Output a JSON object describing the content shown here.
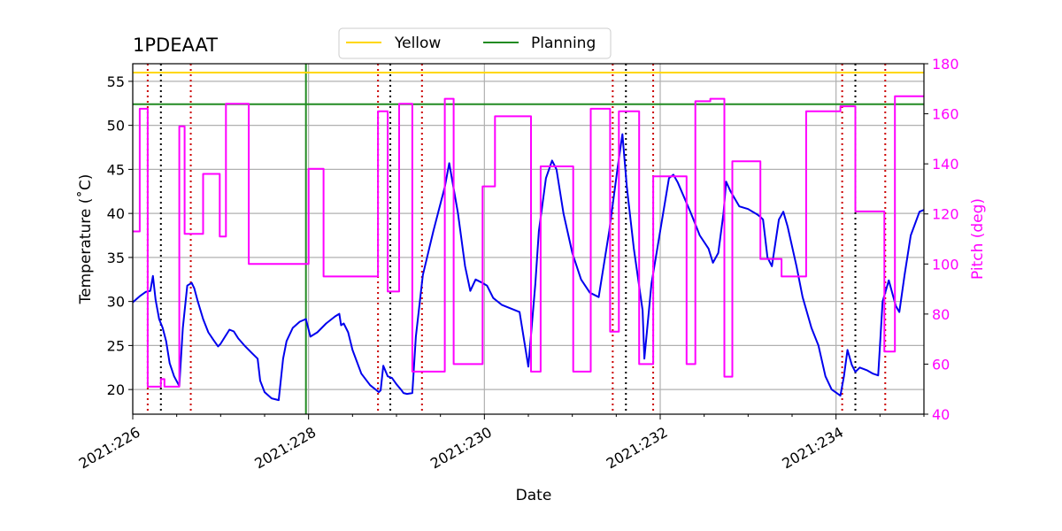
{
  "chart_data": {
    "type": "line",
    "title": "1PDEAAT",
    "xlabel": "Date",
    "ylabel": "Temperature ($^\\circ$C)",
    "ylabel_display": "Temperature (˚C)",
    "y2label": "Pitch (deg)",
    "xlim": [
      226.0,
      235.0
    ],
    "ylim": [
      17.2,
      57.0
    ],
    "y2lim": [
      40,
      180
    ],
    "x_ticks": [
      226,
      228,
      230,
      232,
      234
    ],
    "x_tick_labels": [
      "2021:226",
      "2021:228",
      "2021:230",
      "2021:232",
      "2021:234"
    ],
    "y_ticks": [
      20,
      25,
      30,
      35,
      40,
      45,
      50,
      55
    ],
    "y2_ticks": [
      40,
      60,
      80,
      100,
      120,
      140,
      160,
      180
    ],
    "grid": true,
    "colors": {
      "temperature": "#0000ee",
      "pitch": "#ff00ff",
      "yellow": "#ffd700",
      "planning": "#228b22",
      "comm": "#cc0000",
      "safe": "#000000",
      "grid": "#b0b0b0"
    },
    "legend": {
      "position": "top-center",
      "entries": [
        {
          "name": "Yellow",
          "color": "#ffd700"
        },
        {
          "name": "Planning",
          "color": "#228b22"
        }
      ]
    },
    "limits": {
      "yellow": 56.0,
      "planning": 52.4
    },
    "planning_vline_x": 227.97,
    "red_dotted_x": [
      226.17,
      226.66,
      228.79,
      229.29,
      231.46,
      231.92,
      234.07,
      234.56
    ],
    "black_dotted_x": [
      226.32,
      228.93,
      231.61,
      234.22
    ],
    "series": [
      {
        "name": "Temperature",
        "axis": "left",
        "x": [
          226.0,
          226.08,
          226.15,
          226.2,
          226.23,
          226.26,
          226.3,
          226.34,
          226.38,
          226.42,
          226.47,
          226.53,
          226.57,
          226.62,
          226.67,
          226.7,
          226.74,
          226.8,
          226.86,
          226.92,
          226.97,
          227.0,
          227.05,
          227.1,
          227.15,
          227.2,
          227.27,
          227.35,
          227.42,
          227.45,
          227.5,
          227.58,
          227.66,
          227.71,
          227.75,
          227.82,
          227.9,
          227.97,
          228.02,
          228.1,
          228.2,
          228.3,
          228.35,
          228.37,
          228.4,
          228.45,
          228.5,
          228.6,
          228.7,
          228.8,
          228.82,
          228.85,
          228.9,
          228.95,
          229.0,
          229.05,
          229.08,
          229.12,
          229.18,
          229.22,
          229.3,
          229.42,
          229.55,
          229.6,
          229.7,
          229.78,
          229.84,
          229.9,
          229.96,
          230.03,
          230.1,
          230.2,
          230.3,
          230.4,
          230.5,
          230.58,
          230.62,
          230.7,
          230.77,
          230.82,
          230.9,
          231.0,
          231.1,
          231.2,
          231.3,
          231.42,
          231.52,
          231.57,
          231.62,
          231.7,
          231.8,
          231.82,
          231.9,
          232.0,
          232.1,
          232.15,
          232.2,
          232.35,
          232.45,
          232.55,
          232.6,
          232.66,
          232.72,
          232.75,
          232.8,
          232.9,
          233.0,
          233.1,
          233.14,
          233.17,
          233.22,
          233.27,
          233.35,
          233.4,
          233.45,
          233.55,
          233.62,
          233.72,
          233.8,
          233.88,
          233.95,
          234.05,
          234.09,
          234.13,
          234.18,
          234.22,
          234.27,
          234.35,
          234.42,
          234.48,
          234.53,
          234.6,
          234.68,
          234.72,
          234.78,
          234.85,
          234.95,
          235.0
        ],
        "y": [
          29.9,
          30.6,
          31.1,
          31.2,
          32.9,
          30.2,
          28.0,
          27.0,
          25.5,
          23.0,
          21.5,
          20.4,
          27.0,
          31.8,
          32.1,
          31.5,
          30.0,
          28.0,
          26.5,
          25.6,
          24.9,
          25.2,
          26.0,
          26.8,
          26.6,
          25.8,
          25.0,
          24.2,
          23.5,
          21.0,
          19.7,
          19.0,
          18.8,
          23.5,
          25.5,
          27.0,
          27.7,
          28.0,
          26.0,
          26.5,
          27.5,
          28.3,
          28.6,
          27.3,
          27.5,
          26.5,
          24.5,
          21.8,
          20.5,
          19.7,
          19.9,
          22.7,
          21.5,
          21.3,
          20.6,
          20.0,
          19.6,
          19.5,
          19.6,
          26.0,
          33.0,
          38.0,
          43.0,
          45.7,
          40.0,
          34.0,
          31.2,
          32.5,
          32.2,
          31.8,
          30.4,
          29.6,
          29.2,
          28.8,
          22.6,
          32.0,
          38.0,
          44.0,
          46.0,
          45.0,
          40.0,
          35.5,
          32.5,
          31.0,
          30.5,
          38.0,
          45.5,
          49.0,
          43.0,
          36.0,
          29.0,
          23.5,
          32.0,
          38.0,
          44.0,
          44.4,
          43.5,
          40.0,
          37.5,
          36.0,
          34.4,
          35.5,
          40.0,
          43.6,
          42.5,
          40.8,
          40.5,
          39.9,
          39.6,
          39.3,
          35.0,
          34.0,
          39.3,
          40.2,
          38.5,
          34.0,
          30.5,
          27.0,
          25.0,
          21.5,
          20.0,
          19.3,
          21.5,
          24.5,
          22.8,
          22.0,
          22.5,
          22.2,
          21.8,
          21.6,
          30.0,
          32.4,
          29.5,
          28.8,
          33.0,
          37.5,
          40.2,
          40.4
        ]
      },
      {
        "name": "Pitch",
        "axis": "right",
        "x": [
          226.0,
          226.08,
          226.08,
          226.17,
          226.17,
          226.32,
          226.32,
          226.36,
          226.36,
          226.42,
          226.44,
          226.48,
          226.51,
          226.53,
          226.53,
          226.59,
          226.59,
          226.66,
          226.66,
          226.8,
          226.8,
          226.99,
          226.99,
          227.06,
          227.06,
          227.32,
          227.32,
          227.45,
          227.45,
          227.66,
          227.66,
          228.0,
          228.0,
          228.17,
          228.17,
          228.38,
          228.38,
          228.79,
          228.79,
          228.9,
          228.9,
          229.03,
          229.03,
          229.18,
          229.18,
          229.29,
          229.29,
          229.55,
          229.55,
          229.65,
          229.65,
          229.78,
          229.78,
          229.98,
          229.98,
          230.05,
          230.05,
          230.12,
          230.12,
          230.53,
          230.53,
          230.59,
          230.59,
          230.64,
          230.64,
          230.75,
          230.75,
          231.01,
          231.01,
          231.21,
          231.21,
          231.43,
          231.43,
          231.48,
          231.48,
          231.53,
          231.53,
          231.76,
          231.76,
          231.82,
          231.82,
          231.92,
          231.92,
          232.1,
          232.1,
          232.3,
          232.3,
          232.4,
          232.4,
          232.57,
          232.57,
          232.73,
          232.73,
          232.82,
          232.82,
          233.14,
          233.14,
          233.24,
          233.24,
          233.38,
          233.38,
          233.66,
          233.66,
          234.05,
          234.05,
          234.22,
          234.22,
          234.26,
          234.26,
          234.55,
          234.55,
          234.67,
          234.67,
          234.95,
          234.95,
          235.0
        ],
        "y": [
          113,
          113,
          162,
          162,
          51,
          51,
          54,
          54,
          51,
          51,
          51,
          51,
          51,
          51,
          155,
          155,
          112,
          112,
          112,
          112,
          136,
          136,
          111,
          111,
          164,
          164,
          100,
          100,
          100,
          100,
          100,
          100,
          138,
          138,
          95,
          95,
          95,
          95,
          161,
          161,
          89,
          89,
          164,
          164,
          57,
          57,
          57,
          57,
          166,
          166,
          60,
          60,
          60,
          60,
          131,
          131,
          131,
          131,
          159,
          159,
          57,
          57,
          57,
          57,
          139,
          139,
          139,
          139,
          57,
          57,
          162,
          162,
          73,
          73,
          73,
          73,
          161,
          161,
          60,
          60,
          60,
          60,
          135,
          135,
          135,
          135,
          60,
          60,
          165,
          165,
          166,
          166,
          55,
          55,
          141,
          141,
          102,
          102,
          102,
          102,
          95,
          95,
          161,
          161,
          163,
          163,
          121,
          121,
          121,
          121,
          65,
          65,
          167,
          167,
          167,
          167
        ]
      }
    ]
  }
}
